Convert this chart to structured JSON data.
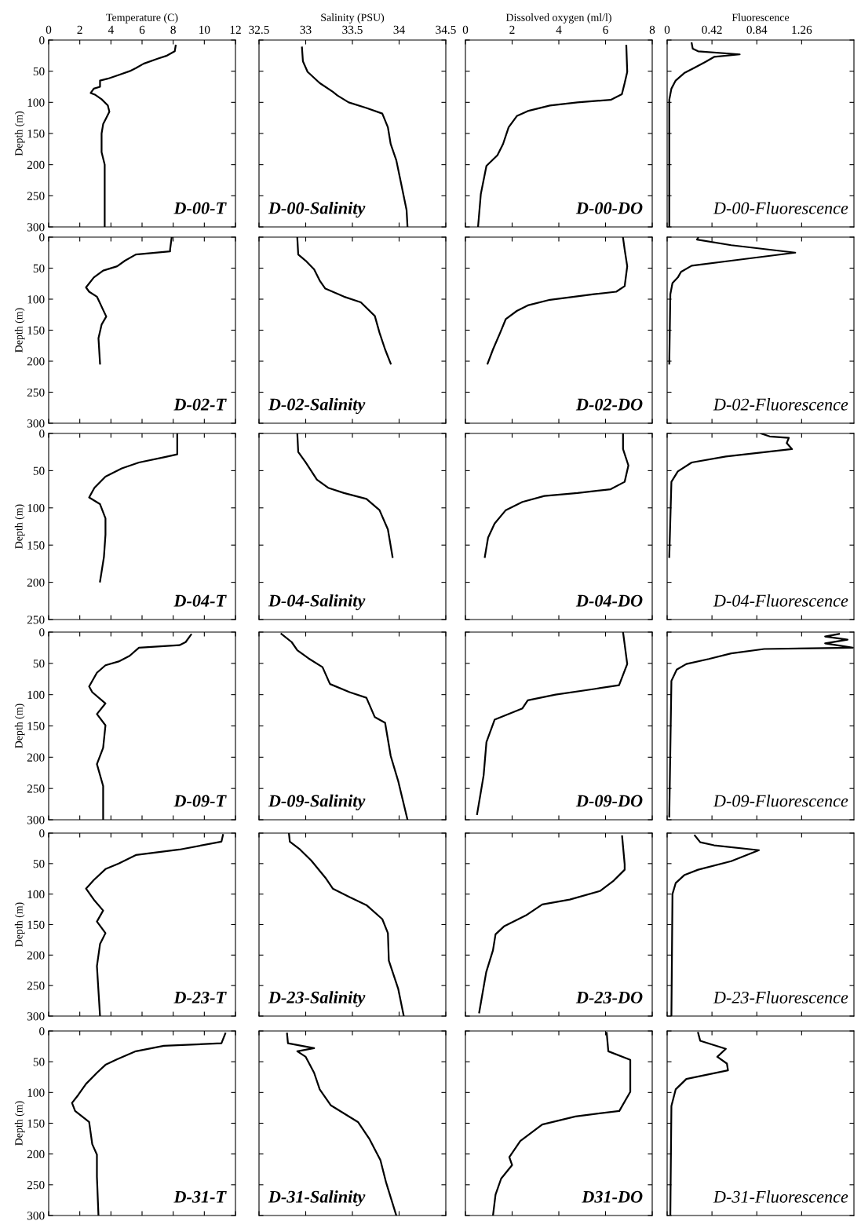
{
  "chart_data": [
    {
      "type": "line",
      "xlabel": "Temperature (C)",
      "ylabel": "Depth (m)",
      "xlim": [
        0,
        12
      ],
      "xticks": [
        0,
        2,
        4,
        6,
        8,
        10,
        12
      ],
      "ylim": [
        300,
        0
      ],
      "yticks": [
        0,
        50,
        100,
        150,
        200,
        250,
        300
      ],
      "annotations": [
        "D-00-T"
      ],
      "series": [
        {
          "color": "#000000",
          "x": [
            8.16,
            8.1,
            7.6,
            7.0,
            6.1,
            5.6,
            5.2,
            4.5,
            3.8,
            3.3,
            3.3,
            2.9,
            2.7,
            3.0,
            3.4,
            3.8,
            3.9,
            3.7,
            3.5,
            3.4,
            3.4,
            3.6,
            3.6,
            3.6
          ],
          "values": [
            9,
            18,
            25,
            30,
            38,
            45,
            50,
            56,
            62,
            65,
            75,
            78,
            85,
            88,
            95,
            105,
            115,
            125,
            135,
            150,
            180,
            200,
            250,
            300
          ]
        }
      ]
    },
    {
      "type": "line",
      "xlabel": "Salinity (PSU)",
      "xlim": [
        32.5,
        34.5
      ],
      "xticks": [
        32.5,
        33,
        33.5,
        34,
        34.5
      ],
      "ylim": [
        300,
        0
      ],
      "yticks": [
        0,
        50,
        100,
        150,
        200,
        250,
        300
      ],
      "tick_labels": "x",
      "annotations": [
        "D-00-Salinity"
      ],
      "series": [
        {
          "color": "#000000",
          "x": [
            32.96,
            32.97,
            33.02,
            33.15,
            33.29,
            33.34,
            33.46,
            33.65,
            33.82,
            33.88,
            33.91,
            33.97,
            34.02,
            34.08,
            34.09
          ],
          "values": [
            12,
            34,
            51,
            69,
            83,
            89,
            100,
            109,
            118,
            140,
            167,
            193,
            229,
            273,
            300
          ]
        }
      ]
    },
    {
      "type": "line",
      "xlabel": "Dissolved oxygen (ml/l)",
      "xlim": [
        0,
        8
      ],
      "xticks": [
        0,
        2,
        4,
        6,
        8
      ],
      "ylim": [
        300,
        0
      ],
      "yticks": [
        0,
        50,
        100,
        150,
        200,
        250,
        300
      ],
      "tick_labels": "x",
      "annotations": [
        "D-00-DO"
      ],
      "series": [
        {
          "color": "#000000",
          "x": [
            6.89,
            6.93,
            6.82,
            6.7,
            6.22,
            4.8,
            3.62,
            2.67,
            2.2,
            1.85,
            1.61,
            1.37,
            0.9,
            0.66,
            0.54
          ],
          "values": [
            9,
            51,
            69,
            87,
            96,
            100,
            105,
            114,
            122,
            140,
            167,
            185,
            202,
            247,
            300
          ]
        }
      ]
    },
    {
      "type": "line",
      "xlabel": "Fluorescence",
      "xlim": [
        0,
        1.75
      ],
      "xticks": [
        0,
        0.42,
        0.84,
        1.26
      ],
      "ylim": [
        300,
        0
      ],
      "yticks": [
        0,
        50,
        100,
        150,
        200,
        250,
        300
      ],
      "tick_labels": "x",
      "annotations": [
        "D-00-Fluorescence"
      ],
      "series": [
        {
          "color": "#000000",
          "x": [
            0.23,
            0.24,
            0.29,
            0.68,
            0.44,
            0.36,
            0.26,
            0.16,
            0.08,
            0.04,
            0.02,
            0.02
          ],
          "values": [
            5,
            14,
            18,
            23,
            27,
            35,
            44,
            53,
            65,
            78,
            96,
            300
          ]
        }
      ]
    },
    {
      "type": "line",
      "ylabel": "Depth (m)",
      "xlim": [
        0,
        12
      ],
      "xticks": [
        0,
        2,
        4,
        6,
        8,
        10,
        12
      ],
      "ylim": [
        300,
        0
      ],
      "yticks": [
        0,
        50,
        100,
        150,
        200,
        250,
        300
      ],
      "tick_labels": "y",
      "annotations": [
        "D-02-T"
      ],
      "series": [
        {
          "color": "#000000",
          "x": [
            7.9,
            7.8,
            7.8,
            5.6,
            4.9,
            4.4,
            3.5,
            2.9,
            2.4,
            2.6,
            3.1,
            3.7,
            3.4,
            3.2,
            3.3
          ],
          "values": [
            1,
            20,
            23,
            28,
            38,
            47,
            54,
            65,
            81,
            88,
            96,
            128,
            141,
            163,
            204
          ]
        }
      ]
    },
    {
      "type": "line",
      "xlim": [
        32.5,
        34.5
      ],
      "xticks": [
        32.5,
        33,
        33.5,
        34,
        34.5
      ],
      "ylim": [
        300,
        0
      ],
      "yticks": [
        0,
        50,
        100,
        150,
        200,
        250,
        300
      ],
      "tick_labels": false,
      "annotations": [
        "D-02-Salinity"
      ],
      "series": [
        {
          "color": "#000000",
          "x": [
            32.91,
            32.92,
            33.0,
            33.09,
            33.15,
            33.21,
            33.41,
            33.59,
            33.74,
            33.79,
            33.85,
            33.91
          ],
          "values": [
            1,
            28,
            38,
            52,
            70,
            83,
            96,
            105,
            127,
            154,
            181,
            204
          ]
        }
      ]
    },
    {
      "type": "line",
      "xlim": [
        0,
        8
      ],
      "xticks": [
        0,
        2,
        4,
        6,
        8
      ],
      "ylim": [
        300,
        0
      ],
      "yticks": [
        0,
        50,
        100,
        150,
        200,
        250,
        300
      ],
      "tick_labels": false,
      "annotations": [
        "D-02-DO"
      ],
      "series": [
        {
          "color": "#000000",
          "x": [
            6.75,
            6.82,
            6.93,
            6.82,
            6.46,
            5.51,
            3.62,
            2.67,
            2.2,
            1.73,
            1.49,
            1.18,
            0.95
          ],
          "values": [
            1,
            20,
            47,
            79,
            88,
            92,
            101,
            110,
            119,
            132,
            154,
            181,
            204
          ]
        }
      ]
    },
    {
      "type": "line",
      "xlim": [
        0,
        1.75
      ],
      "xticks": [
        0,
        0.42,
        0.84,
        1.26
      ],
      "ylim": [
        300,
        0
      ],
      "yticks": [
        0,
        50,
        100,
        150,
        200,
        250,
        300
      ],
      "tick_labels": false,
      "annotations": [
        "D-02-Fluorescence"
      ],
      "series": [
        {
          "color": "#000000",
          "x": [
            0.29,
            0.28,
            0.6,
            1.2,
            0.6,
            0.23,
            0.13,
            0.1,
            0.05,
            0.03,
            0.02
          ],
          "values": [
            1,
            4,
            13,
            25,
            38,
            46,
            56,
            65,
            74,
            92,
            204
          ]
        }
      ]
    },
    {
      "type": "line",
      "ylabel": "Depth (m)",
      "xlim": [
        0,
        12
      ],
      "xticks": [
        0,
        2,
        4,
        6,
        8,
        10,
        12
      ],
      "ylim": [
        250,
        0
      ],
      "yticks": [
        0,
        50,
        100,
        150,
        200,
        250
      ],
      "tick_labels": "y",
      "annotations": [
        "D-04-T"
      ],
      "series": [
        {
          "color": "#000000",
          "x": [
            8.26,
            8.26,
            7.4,
            5.8,
            4.7,
            3.65,
            2.94,
            2.6,
            3.3,
            3.65,
            3.65,
            3.55,
            3.3
          ],
          "values": [
            0,
            28,
            32,
            39,
            47,
            58,
            73,
            86,
            95,
            114,
            136,
            166,
            199
          ]
        }
      ]
    },
    {
      "type": "line",
      "xlim": [
        32.5,
        34.5
      ],
      "xticks": [
        32.5,
        33,
        33.5,
        34,
        34.5
      ],
      "ylim": [
        250,
        0
      ],
      "yticks": [
        0,
        50,
        100,
        150,
        200,
        250
      ],
      "tick_labels": false,
      "annotations": [
        "D-04-Salinity"
      ],
      "series": [
        {
          "color": "#000000",
          "x": [
            32.91,
            32.92,
            33.0,
            33.12,
            33.24,
            33.41,
            33.65,
            33.79,
            33.88,
            33.93
          ],
          "values": [
            0,
            25,
            39,
            62,
            73,
            80,
            88,
            103,
            129,
            166
          ]
        }
      ]
    },
    {
      "type": "line",
      "xlim": [
        0,
        8
      ],
      "xticks": [
        0,
        2,
        4,
        6,
        8
      ],
      "ylim": [
        250,
        0
      ],
      "yticks": [
        0,
        50,
        100,
        150,
        200,
        250
      ],
      "tick_labels": false,
      "annotations": [
        "D-04-DO"
      ],
      "series": [
        {
          "color": "#000000",
          "x": [
            6.75,
            6.75,
            6.98,
            6.82,
            6.22,
            4.8,
            3.38,
            2.44,
            1.73,
            1.25,
            0.97,
            0.83
          ],
          "values": [
            0,
            21,
            43,
            65,
            75,
            80,
            84,
            92,
            103,
            121,
            140,
            166
          ]
        }
      ]
    },
    {
      "type": "line",
      "xlim": [
        0,
        1.75
      ],
      "xticks": [
        0,
        0.42,
        0.84,
        1.26
      ],
      "ylim": [
        250,
        0
      ],
      "yticks": [
        0,
        50,
        100,
        150,
        200,
        250
      ],
      "tick_labels": false,
      "annotations": [
        "D-04-Fluorescence"
      ],
      "series": [
        {
          "color": "#000000",
          "x": [
            0.88,
            0.96,
            1.14,
            1.12,
            1.17,
            0.55,
            0.23,
            0.1,
            0.04,
            0.02
          ],
          "values": [
            0,
            4,
            6,
            13,
            21,
            31,
            39,
            51,
            65,
            166
          ]
        }
      ]
    },
    {
      "type": "line",
      "ylabel": "Depth (m)",
      "xlim": [
        0,
        12
      ],
      "xticks": [
        0,
        2,
        4,
        6,
        8,
        10,
        12
      ],
      "ylim": [
        300,
        0
      ],
      "yticks": [
        0,
        50,
        100,
        150,
        200,
        250,
        300
      ],
      "tick_labels": "y",
      "annotations": [
        "D-09-T"
      ],
      "series": [
        {
          "color": "#000000",
          "x": [
            9.15,
            8.8,
            8.4,
            5.8,
            5.2,
            4.5,
            3.65,
            3.1,
            2.6,
            2.8,
            3.65,
            3.1,
            3.65,
            3.5,
            3.1,
            3.5,
            3.5
          ],
          "values": [
            4,
            16,
            21,
            25,
            38,
            47,
            53,
            65,
            87,
            96,
            114,
            131,
            149,
            185,
            211,
            246,
            300
          ]
        }
      ]
    },
    {
      "type": "line",
      "xlim": [
        32.5,
        34.5
      ],
      "xticks": [
        32.5,
        33,
        33.5,
        34,
        34.5
      ],
      "ylim": [
        300,
        0
      ],
      "yticks": [
        0,
        50,
        100,
        150,
        200,
        250,
        300
      ],
      "tick_labels": false,
      "annotations": [
        "D-09-Salinity"
      ],
      "series": [
        {
          "color": "#000000",
          "x": [
            32.74,
            32.85,
            32.91,
            33.03,
            33.18,
            33.26,
            33.47,
            33.65,
            33.74,
            33.85,
            33.91,
            33.99,
            34.09
          ],
          "values": [
            3,
            16,
            29,
            42,
            56,
            83,
            96,
            105,
            136,
            145,
            198,
            238,
            300
          ]
        }
      ]
    },
    {
      "type": "line",
      "xlim": [
        0,
        8
      ],
      "xticks": [
        0,
        2,
        4,
        6,
        8
      ],
      "ylim": [
        300,
        0
      ],
      "yticks": [
        0,
        50,
        100,
        150,
        200,
        250,
        300
      ],
      "tick_labels": false,
      "annotations": [
        "D-09-DO"
      ],
      "series": [
        {
          "color": "#000000",
          "x": [
            6.75,
            6.93,
            6.58,
            5.51,
            3.86,
            2.67,
            2.44,
            1.25,
            0.9,
            0.78,
            0.5
          ],
          "values": [
            0,
            51,
            85,
            91,
            100,
            109,
            122,
            140,
            176,
            229,
            291
          ]
        }
      ]
    },
    {
      "type": "line",
      "xlim": [
        0,
        1.75
      ],
      "xticks": [
        0,
        0.42,
        0.84,
        1.26
      ],
      "ylim": [
        300,
        0
      ],
      "yticks": [
        0,
        50,
        100,
        150,
        200,
        250,
        300
      ],
      "tick_labels": false,
      "annotations": [
        "D-09-Fluorescence"
      ],
      "series": [
        {
          "color": "#000000",
          "x": [
            1.61,
            1.48,
            1.69,
            1.48,
            1.74,
            0.91,
            0.6,
            0.39,
            0.18,
            0.09,
            0.04,
            0.02
          ],
          "values": [
            3,
            7,
            12,
            18,
            25,
            27,
            34,
            43,
            51,
            60,
            78,
            295
          ]
        }
      ]
    },
    {
      "type": "line",
      "ylabel": "Depth (m)",
      "xlim": [
        0,
        12
      ],
      "xticks": [
        0,
        2,
        4,
        6,
        8,
        10,
        12
      ],
      "ylim": [
        300,
        0
      ],
      "yticks": [
        0,
        50,
        100,
        150,
        200,
        250,
        300
      ],
      "tick_labels": "y",
      "annotations": [
        "D-23-T"
      ],
      "series": [
        {
          "color": "#000000",
          "x": [
            11.2,
            11.1,
            8.4,
            5.6,
            4.5,
            3.65,
            2.9,
            2.4,
            2.9,
            3.5,
            3.1,
            3.65,
            3.3,
            3.1,
            3.3
          ],
          "values": [
            3,
            14,
            27,
            36,
            50,
            59,
            77,
            91,
            109,
            127,
            145,
            164,
            182,
            218,
            300
          ]
        }
      ]
    },
    {
      "type": "line",
      "xlim": [
        32.5,
        34.5
      ],
      "xticks": [
        32.5,
        33,
        33.5,
        34,
        34.5
      ],
      "ylim": [
        300,
        0
      ],
      "yticks": [
        0,
        50,
        100,
        150,
        200,
        250,
        300
      ],
      "tick_labels": false,
      "annotations": [
        "D-23-Salinity"
      ],
      "series": [
        {
          "color": "#000000",
          "x": [
            32.82,
            32.83,
            32.94,
            33.06,
            33.21,
            33.29,
            33.47,
            33.65,
            33.82,
            33.88,
            33.89,
            33.99,
            34.05
          ],
          "values": [
            0,
            14,
            27,
            45,
            73,
            91,
            105,
            118,
            141,
            164,
            209,
            255,
            300
          ]
        }
      ]
    },
    {
      "type": "line",
      "xlim": [
        0,
        8
      ],
      "xticks": [
        0,
        2,
        4,
        6,
        8
      ],
      "ylim": [
        300,
        0
      ],
      "yticks": [
        0,
        50,
        100,
        150,
        200,
        250,
        300
      ],
      "tick_labels": false,
      "annotations": [
        "D-23-DO"
      ],
      "series": [
        {
          "color": "#000000",
          "x": [
            6.71,
            6.82,
            6.82,
            6.35,
            5.76,
            4.47,
            3.29,
            2.59,
            1.65,
            1.29,
            1.18,
            0.89,
            0.59
          ],
          "values": [
            5,
            51,
            60,
            78,
            95,
            109,
            117,
            135,
            153,
            166,
            192,
            228,
            294
          ]
        }
      ]
    },
    {
      "type": "line",
      "xlim": [
        0,
        1.75
      ],
      "xticks": [
        0,
        0.42,
        0.84,
        1.26
      ],
      "ylim": [
        300,
        0
      ],
      "yticks": [
        0,
        50,
        100,
        150,
        200,
        250,
        300
      ],
      "tick_labels": false,
      "annotations": [
        "D-23-Fluorescence"
      ],
      "series": [
        {
          "color": "#000000",
          "x": [
            0.26,
            0.31,
            0.44,
            0.86,
            0.6,
            0.29,
            0.16,
            0.08,
            0.05,
            0.04
          ],
          "values": [
            4,
            15,
            20,
            28,
            46,
            60,
            69,
            82,
            100,
            300
          ]
        }
      ]
    },
    {
      "type": "line",
      "ylabel": "Depth (m)",
      "xlim": [
        0,
        12
      ],
      "xticks": [
        0,
        2,
        4,
        6,
        8,
        10,
        12
      ],
      "ylim": [
        300,
        0
      ],
      "yticks": [
        0,
        50,
        100,
        150,
        200,
        250,
        300
      ],
      "tick_labels": "y",
      "annotations": [
        "D-31-T"
      ],
      "series": [
        {
          "color": "#000000",
          "x": [
            11.35,
            11.1,
            7.4,
            5.6,
            4.4,
            3.65,
            3.1,
            2.4,
            1.9,
            1.5,
            1.7,
            2.6,
            2.8,
            3.1,
            3.1,
            3.2
          ],
          "values": [
            4,
            20,
            24,
            33,
            46,
            55,
            68,
            86,
            104,
            117,
            130,
            148,
            184,
            201,
            237,
            300
          ]
        }
      ]
    },
    {
      "type": "line",
      "xlim": [
        32.5,
        34.5
      ],
      "xticks": [
        32.5,
        33,
        33.5,
        34,
        34.5
      ],
      "ylim": [
        300,
        0
      ],
      "yticks": [
        0,
        50,
        100,
        150,
        200,
        250,
        300
      ],
      "tick_labels": false,
      "annotations": [
        "D-31-Salinity"
      ],
      "series": [
        {
          "color": "#000000",
          "x": [
            32.8,
            32.81,
            33.09,
            32.91,
            33.0,
            33.09,
            33.15,
            33.27,
            33.56,
            33.68,
            33.8,
            33.86,
            33.97
          ],
          "values": [
            4,
            20,
            28,
            33,
            42,
            68,
            95,
            121,
            148,
            175,
            210,
            246,
            300
          ]
        }
      ]
    },
    {
      "type": "line",
      "xlim": [
        0,
        8
      ],
      "xticks": [
        0,
        2,
        4,
        6,
        8
      ],
      "ylim": [
        300,
        0
      ],
      "yticks": [
        0,
        50,
        100,
        150,
        200,
        250,
        300
      ],
      "tick_labels": false,
      "annotations": [
        "D31-DO"
      ],
      "series": [
        {
          "color": "#000000",
          "x": [
            6.05,
            6.12,
            7.06,
            7.06,
            6.59,
            4.71,
            3.29,
            2.35,
            1.88,
            2.0,
            1.53,
            1.29,
            1.18
          ],
          "values": [
            3,
            33,
            47,
            99,
            130,
            139,
            152,
            179,
            205,
            218,
            240,
            266,
            300
          ]
        }
      ]
    },
    {
      "type": "line",
      "xlim": [
        0,
        1.75
      ],
      "xticks": [
        0,
        0.42,
        0.84,
        1.26
      ],
      "ylim": [
        300,
        0
      ],
      "yticks": [
        0,
        50,
        100,
        150,
        200,
        250,
        300
      ],
      "tick_labels": false,
      "annotations": [
        "D-31-Fluorescence"
      ],
      "series": [
        {
          "color": "#000000",
          "x": [
            0.29,
            0.31,
            0.55,
            0.47,
            0.56,
            0.57,
            0.18,
            0.08,
            0.04,
            0.03
          ],
          "values": [
            3,
            16,
            29,
            42,
            53,
            64,
            78,
            95,
            122,
            298
          ]
        }
      ]
    }
  ]
}
